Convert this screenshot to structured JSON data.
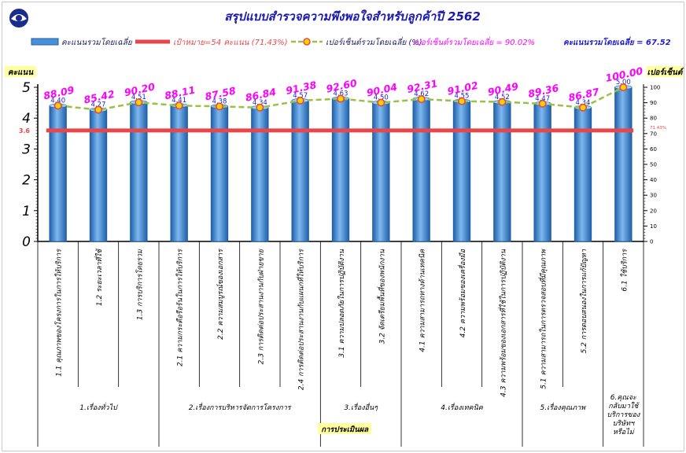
{
  "title": "สรุปแบบสำรวจความพึงพอใจสำหรับลูกค้าปี 2562",
  "legend": {
    "bar": "คะแนนรวมโดยเฉลี่ย",
    "target": "เป้าหมาย=54 คะแนน (71.43%)",
    "pct": "เปอร์เซ็นต์รวมโดยเฉลี่ย (%)"
  },
  "summary": {
    "avg_pct": "เปอร์เซ็นต์รวมโดยเฉลี่ย = 90.02%",
    "avg_score": "คะแนนรวมโดยเฉลี่ย = 67.52"
  },
  "y_left_label": "คะแนน",
  "y_right_label": "เปอร์เซ็นต์",
  "x_group_title": "การประเมินผล",
  "target_left_label": "3.6",
  "target_right_label": "71.43%",
  "colors": {
    "bar": "#4a90d9",
    "bar_dark": "#1f5fa8",
    "target": "#e8474a",
    "pct_line": "#9ac048",
    "pct_marker": "#ffd400",
    "pct_marker_edge": "#e8474a",
    "pct_label": "#ff00ff",
    "score_label": "#1c1cd0",
    "title": "#1a1ab0"
  },
  "chart_data": {
    "type": "bar",
    "categories": [
      "1.1 คุณภาพของโครงการในการให้บริการ",
      "1.2 ระยะเวลาที่ใช้",
      "1.3 การบริการโดยรวม",
      "2.1 ความกระตือรือร้นในการให้บริการ",
      "2.2 ความสมบูรณ์ของเอกสาร",
      "2.3 การติดต่อประสานงานกับฝ่ายขาย",
      "2.4 การติดต่อประสานงานกับแผนกที่ให้บริการ",
      "3.1 ความปลอดภัยในการปฏิบัติงาน",
      "3.2 จัดเตรียมพื้นที่ของพนักงาน",
      "4.1 ความสามารถทางด้านเทคนิค",
      "4.2 ความพร้อมของเครื่องมือ",
      "4.3 ความพร้อมของเอกสารที่ใช้ในการปฏิบัติงาน",
      "5.1 ความสามารถในการตรวจสอบที่มีคุณภาพ",
      "5.2 การตอบสนองในการแก้ปัญหา",
      "6.1 ใช้บริการ"
    ],
    "groups": [
      {
        "label": "1.เรื่องทั่วไป",
        "count": 3
      },
      {
        "label": "2.เรื่องการบริหารจัดการโครงการ",
        "count": 4
      },
      {
        "label": "3.เรื่องอื่นๆ",
        "count": 2
      },
      {
        "label": "4.เรื่องเทคนิค",
        "count": 3
      },
      {
        "label": "5.เรื่องคุณภาพ",
        "count": 2
      },
      {
        "label": "6.คุณจะกลับมาใช้บริการของบริษัทฯหรือไม่",
        "count": 1
      }
    ],
    "series": [
      {
        "name": "คะแนนรวมโดยเฉลี่ย",
        "type": "bar",
        "axis": "left",
        "values": [
          4.4,
          4.27,
          4.51,
          4.41,
          4.38,
          4.34,
          4.57,
          4.63,
          4.5,
          4.62,
          4.55,
          4.52,
          4.47,
          4.34,
          5.0
        ],
        "labels": [
          "4.40",
          "4.27",
          "4.51",
          "4.41",
          "4.38",
          "4.34",
          "4.57",
          "4.63",
          "4.50",
          "4.62",
          "4.55",
          "4.52",
          "4.47",
          "4.34",
          "5.00"
        ]
      },
      {
        "name": "เปอร์เซ็นต์รวมโดยเฉลี่ย (%)",
        "type": "line",
        "axis": "right",
        "values": [
          88.09,
          85.42,
          90.2,
          88.11,
          87.58,
          86.84,
          91.38,
          92.6,
          90.04,
          92.31,
          91.02,
          90.49,
          89.36,
          86.87,
          100.0
        ],
        "labels": [
          "88.09",
          "85.42",
          "90.20",
          "88.11",
          "87.58",
          "86.84",
          "91.38",
          "92.60",
          "90.04",
          "92.31",
          "91.02",
          "90.49",
          "89.36",
          "86.87",
          "100.00"
        ]
      }
    ],
    "target": {
      "name": "เป้าหมาย=54 คะแนน (71.43%)",
      "value": 3.6
    },
    "y_left": {
      "min": 0,
      "max": 5,
      "ticks": [
        "0",
        "1",
        "2",
        "3",
        "4",
        "5"
      ]
    },
    "y_right": {
      "min": 0,
      "max": 100,
      "ticks": [
        "0",
        "10",
        "20",
        "30",
        "40",
        "50",
        "60",
        "70",
        "80",
        "90",
        "100"
      ]
    },
    "grid": false,
    "legend_position": "top"
  }
}
